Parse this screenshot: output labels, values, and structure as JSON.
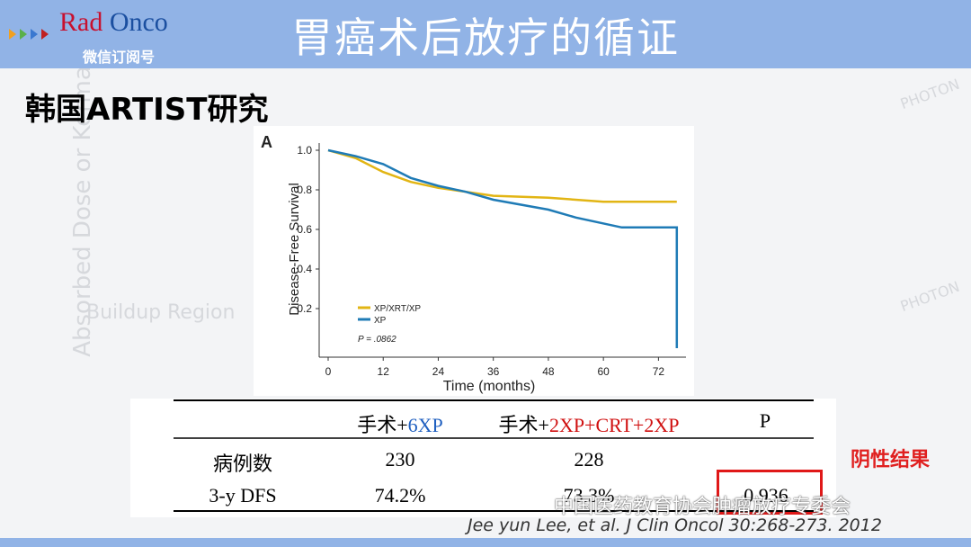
{
  "header": {
    "logo": [
      "Rad",
      "Onco"
    ],
    "logo_sub": "微信订阅号",
    "title": "胃癌术后放疗的循证"
  },
  "background": {
    "watermarks": [
      "Absorbed Dose or Kerma",
      "Buildup Region",
      "PHOTON",
      "PHOTON"
    ]
  },
  "subtitle": "韩国ARTIST研究",
  "chart": {
    "type": "line",
    "panel": "A",
    "ylabel": "Disease-Free Survival",
    "xlabel": "Time (months)",
    "xlim": [
      0,
      78
    ],
    "ylim": [
      0,
      1.0
    ],
    "xticks": [
      0,
      12,
      24,
      36,
      48,
      60,
      72
    ],
    "yticks": [
      {
        "value": 1,
        "label": "1.0"
      },
      0.8,
      0.6,
      0.4,
      0.2
    ],
    "series": [
      {
        "name": "XP/XRT/XP",
        "color": "#e2b514",
        "x": [
          0,
          6,
          12,
          18,
          24,
          30,
          36,
          48,
          60,
          76
        ],
        "values": [
          1.0,
          0.96,
          0.89,
          0.84,
          0.81,
          0.79,
          0.77,
          0.76,
          0.74,
          0.74
        ]
      },
      {
        "name": "XP",
        "color": "#1f7bb6",
        "x": [
          0,
          6,
          12,
          18,
          24,
          30,
          36,
          48,
          54,
          64,
          76,
          76
        ],
        "values": [
          1.0,
          0.97,
          0.93,
          0.86,
          0.82,
          0.79,
          0.75,
          0.7,
          0.66,
          0.61,
          0.61,
          0.0
        ]
      }
    ],
    "pvalue": "P = .0862"
  },
  "table": {
    "columns": [
      [
        "手术+",
        "6XP"
      ],
      [
        "手术+",
        "2XP+CRT+2XP"
      ],
      [
        "P"
      ]
    ],
    "rows": [
      {
        "label": "病例数",
        "values": [
          "230",
          "228"
        ]
      },
      {
        "label": "3-y DFS",
        "values": [
          "74.2%",
          "73.3%",
          "0.936"
        ]
      }
    ]
  },
  "annotation": "阴性结果",
  "citation": "Jee yun Lee, et al. J Clin Oncol 30:268-273. 2012",
  "source_watermark": "中国医药教育协会肿瘤放疗专委会"
}
